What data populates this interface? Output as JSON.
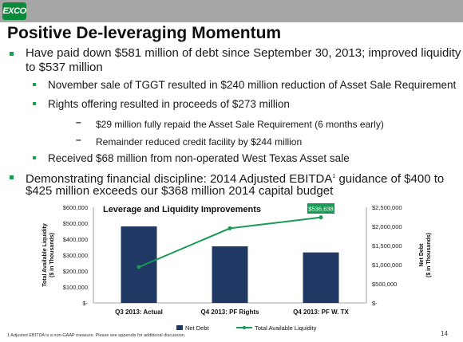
{
  "header": {
    "logo_text": "EXCO",
    "brand_color": "#0c8a3c"
  },
  "title": "Positive De-leveraging Momentum",
  "bullets": {
    "l1a": "Have paid down $581 million of debt since September 30, 2013; improved liquidity",
    "l1b": "to $537 million",
    "l2a": "November sale of TGGT resulted in $240 million reduction of Asset Sale Requirement",
    "l2b": "Rights offering resulted in proceeds of $273 million",
    "l3a": "$29 million fully repaid the Asset Sale Requirement (6 months early)",
    "l3b": "Remainder reduced credit facility by $244 million",
    "l2c": "Received $68 million from non-operated West Texas Asset sale",
    "l1c_a": "Demonstrating financial discipline: 2014 Adjusted EBITDA",
    "l1c_sup": "1",
    "l1c_b": " guidance of $400 to",
    "l1d": "$425 million exceeds our $368 million 2014 capital budget"
  },
  "chart_data": {
    "type": "bar",
    "title": "Leverage and Liquidity Improvements",
    "categories": [
      "Q3 2013: Actual",
      "Q4 2013: PF Rights",
      "Q4 2013: PF W. TX"
    ],
    "series": [
      {
        "name": "Net Debt",
        "kind": "bar",
        "axis": "right",
        "color": "#1f3864",
        "values": [
          2000000,
          1480000,
          1320000
        ]
      },
      {
        "name": "Total Available Liquidity",
        "kind": "line",
        "axis": "left",
        "color": "#1a9a55",
        "values": [
          225000,
          468000,
          536638
        ]
      }
    ],
    "left_axis": {
      "label_line1": "Total Available Liquidity",
      "label_line2": "($ in Thousands)",
      "ylim": [
        0,
        600000
      ],
      "ticks": [
        "$-",
        "$100,000",
        "$200,000",
        "$300,000",
        "$400,000",
        "$500,000",
        "$600,000"
      ]
    },
    "right_axis": {
      "label_line1": "Net Debt",
      "label_line2": "($ in Thousands)",
      "ylim": [
        0,
        2500000
      ],
      "ticks": [
        "$-",
        "$500,000",
        "$1,000,000",
        "$1,500,000",
        "$2,000,000",
        "$2,500,000"
      ]
    },
    "callout": "$536,638",
    "legend_placement": "bottom",
    "grid": false
  },
  "footnote": "1 Adjusted EBITDA is a non-GAAP measure.  Please see appendix for additional discussion.",
  "page_number": "14"
}
